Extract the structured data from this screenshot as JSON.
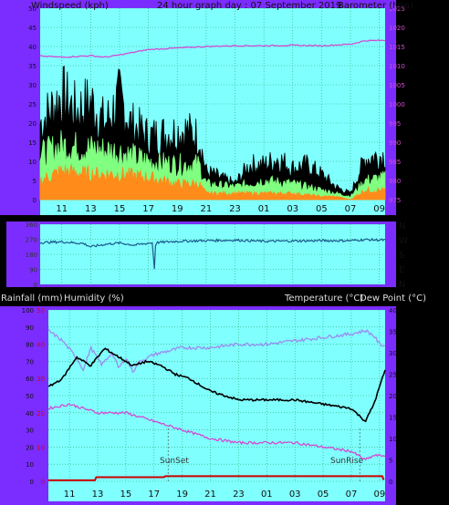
{
  "header": {
    "wind_label": "Windspeed (kph)",
    "graph_title": "24 hour graph day : 07 September 2019",
    "baro_label": "Barometer (hpa)"
  },
  "lower_header": {
    "rain_label": "Rainfall (mm)",
    "humidity_label": "Humidity (%)",
    "temp_label": "Temperature (°C)",
    "dew_label": "Dew Point (°C)"
  },
  "markers": {
    "sunset": "SunSet",
    "sunrise": "SunRise"
  },
  "colors": {
    "frame": "#7b2cff",
    "plot_bg": "#80ffff",
    "grid": "#2aa86a",
    "wind_max": "#000000",
    "wind_gust": "#80ff80",
    "wind_avg": "#ff8c1a",
    "pressure": "#d24bd2",
    "direction": "#1a5a8a",
    "humidity": "#9a8cf0",
    "temperature": "#000000",
    "dewpoint": "#d24bd2",
    "rain": "#cc0000"
  },
  "chart_data": [
    {
      "type": "line",
      "name": "wind_pressure",
      "x_ticks": [
        "11",
        "13",
        "15",
        "17",
        "19",
        "21",
        "23",
        "01",
        "03",
        "05",
        "07",
        "09"
      ],
      "xlim": [
        9.5,
        33.4
      ],
      "ylim_left": [
        0,
        50
      ],
      "yticks_left": [
        "0",
        "5",
        "10",
        "15",
        "20",
        "25",
        "30",
        "35",
        "40",
        "45",
        "50"
      ],
      "ylim_right": [
        975,
        1025
      ],
      "yticks_right": [
        "975",
        "980",
        "985",
        "990",
        "995",
        "1000",
        "1005",
        "1010",
        "1015",
        "1020",
        "1025"
      ],
      "wind_max_env": [
        [
          9.5,
          24
        ],
        [
          11,
          33
        ],
        [
          12,
          28
        ],
        [
          13,
          31
        ],
        [
          14,
          24
        ],
        [
          15,
          32
        ],
        [
          15.8,
          24
        ],
        [
          17,
          20
        ],
        [
          18.5,
          21
        ],
        [
          19.5,
          22
        ],
        [
          20.5,
          20
        ],
        [
          21,
          9
        ],
        [
          22,
          7
        ],
        [
          23,
          5
        ],
        [
          24,
          11
        ],
        [
          25,
          11
        ],
        [
          26,
          13
        ],
        [
          27,
          10
        ],
        [
          28,
          11
        ],
        [
          29,
          8
        ],
        [
          30,
          4
        ],
        [
          31,
          2
        ],
        [
          32,
          13
        ],
        [
          33.4,
          14
        ]
      ],
      "wind_gust_env": [
        [
          9.5,
          14
        ],
        [
          11,
          17
        ],
        [
          13,
          16
        ],
        [
          15,
          15
        ],
        [
          17,
          12
        ],
        [
          19,
          11
        ],
        [
          20.5,
          11
        ],
        [
          21,
          5
        ],
        [
          23,
          4
        ],
        [
          25,
          6
        ],
        [
          27,
          5
        ],
        [
          29,
          3
        ],
        [
          30,
          2
        ],
        [
          31,
          1
        ],
        [
          32,
          6
        ],
        [
          33.4,
          7
        ]
      ],
      "wind_avg_env": [
        [
          9.5,
          6
        ],
        [
          11,
          9
        ],
        [
          13,
          8
        ],
        [
          15,
          8
        ],
        [
          17,
          7
        ],
        [
          19,
          5
        ],
        [
          20.5,
          5
        ],
        [
          21,
          2
        ],
        [
          23,
          2
        ],
        [
          25,
          2
        ],
        [
          27,
          2
        ],
        [
          29,
          1
        ],
        [
          30,
          1
        ],
        [
          31,
          0
        ],
        [
          32,
          3
        ],
        [
          33.4,
          3
        ]
      ],
      "pressure": [
        [
          9.5,
          1012.5
        ],
        [
          11,
          1012.2
        ],
        [
          13,
          1012.6
        ],
        [
          14,
          1012.2
        ],
        [
          15,
          1012.8
        ],
        [
          16,
          1013.5
        ],
        [
          17,
          1014.2
        ],
        [
          19,
          1014.6
        ],
        [
          21,
          1015
        ],
        [
          23,
          1015.2
        ],
        [
          25,
          1015.2
        ],
        [
          27,
          1015.3
        ],
        [
          29,
          1015.2
        ],
        [
          31,
          1015.6
        ],
        [
          32,
          1016.5
        ],
        [
          33.4,
          1016.6
        ]
      ]
    },
    {
      "type": "line",
      "name": "wind_direction",
      "ylim": [
        0,
        360
      ],
      "yticks": [
        "0",
        "90",
        "180",
        "270",
        "360"
      ],
      "right_labels": [
        "N",
        "W",
        "S",
        "E",
        "N"
      ],
      "direction": [
        [
          9.5,
          250
        ],
        [
          11,
          255
        ],
        [
          12.5,
          245
        ],
        [
          13,
          225
        ],
        [
          14,
          240
        ],
        [
          15,
          248
        ],
        [
          16,
          235
        ],
        [
          17.3,
          250
        ],
        [
          17.4,
          60
        ],
        [
          17.5,
          250
        ],
        [
          19,
          258
        ],
        [
          21,
          262
        ],
        [
          23,
          265
        ],
        [
          25,
          258
        ],
        [
          27,
          260
        ],
        [
          29,
          262
        ],
        [
          31,
          262
        ],
        [
          32,
          268
        ],
        [
          33.4,
          265
        ]
      ]
    },
    {
      "type": "line",
      "name": "rain_humidity_temp",
      "ylim_left": [
        0,
        100
      ],
      "yticks_left": [
        "0",
        "10",
        "20",
        "30",
        "40",
        "50",
        "60",
        "70",
        "80",
        "90",
        "100"
      ],
      "rain_ticks": [
        "0",
        "10",
        "20",
        "30",
        "40",
        "50"
      ],
      "ylim_right": [
        0,
        40
      ],
      "yticks_right": [
        "0",
        "5",
        "10",
        "15",
        "20",
        "25",
        "30",
        "35",
        "40"
      ],
      "humidity": [
        [
          9.5,
          88
        ],
        [
          10.5,
          82
        ],
        [
          11.5,
          72
        ],
        [
          12,
          65
        ],
        [
          12.5,
          78
        ],
        [
          13.3,
          68
        ],
        [
          14,
          75
        ],
        [
          14.5,
          66
        ],
        [
          15,
          72
        ],
        [
          15.5,
          64
        ],
        [
          16,
          70
        ],
        [
          17,
          74
        ],
        [
          18,
          76
        ],
        [
          19,
          78
        ],
        [
          21,
          78
        ],
        [
          23,
          80
        ],
        [
          25,
          80
        ],
        [
          27,
          82
        ],
        [
          29,
          84
        ],
        [
          31,
          86
        ],
        [
          32,
          88
        ],
        [
          32.6,
          85
        ],
        [
          33,
          80
        ],
        [
          33.4,
          79
        ]
      ],
      "temperature": [
        [
          9.5,
          22
        ],
        [
          10.5,
          24
        ],
        [
          11.5,
          29
        ],
        [
          12.5,
          27
        ],
        [
          13.5,
          31
        ],
        [
          14.5,
          29
        ],
        [
          15.5,
          27
        ],
        [
          16.5,
          28
        ],
        [
          17.5,
          27
        ],
        [
          18.5,
          25
        ],
        [
          19.5,
          24
        ],
        [
          21,
          21
        ],
        [
          23,
          19
        ],
        [
          25,
          19
        ],
        [
          27,
          19
        ],
        [
          29,
          18
        ],
        [
          31,
          17
        ],
        [
          32,
          14
        ],
        [
          32.6,
          18
        ],
        [
          33.4,
          26
        ]
      ],
      "dewpoint": [
        [
          9.5,
          17
        ],
        [
          11,
          18
        ],
        [
          13,
          16
        ],
        [
          15,
          16
        ],
        [
          17,
          14
        ],
        [
          19,
          12
        ],
        [
          21,
          10
        ],
        [
          23,
          9
        ],
        [
          25,
          9
        ],
        [
          27,
          9
        ],
        [
          29,
          8
        ],
        [
          31,
          7
        ],
        [
          32,
          5
        ],
        [
          32.6,
          6
        ],
        [
          33.4,
          6
        ]
      ],
      "rain": [
        [
          9.5,
          0.3
        ],
        [
          12.8,
          0.3
        ],
        [
          12.9,
          1.2
        ],
        [
          17.7,
          1.2
        ],
        [
          17.8,
          1.5
        ],
        [
          33.2,
          1.5
        ],
        [
          33.3,
          0.4
        ]
      ]
    }
  ]
}
